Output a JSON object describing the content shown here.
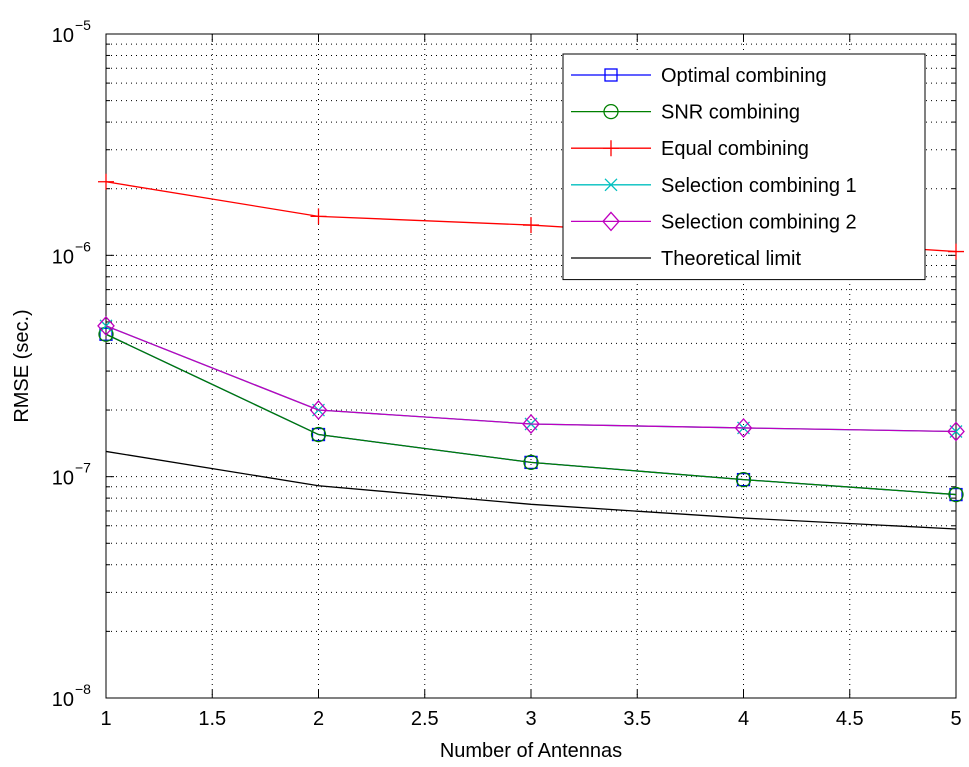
{
  "chart_data": {
    "type": "line",
    "title": "",
    "xlabel": "Number of Antennas",
    "ylabel": "RMSE (sec.)",
    "xlim": [
      1,
      5
    ],
    "ylim": [
      1e-08,
      1e-05
    ],
    "yscale": "log",
    "grid": true,
    "legend_position": "top-right",
    "x": [
      1,
      2,
      3,
      4,
      5
    ],
    "x_ticks": [
      "1",
      "1.5",
      "2",
      "2.5",
      "3",
      "3.5",
      "4",
      "4.5",
      "5"
    ],
    "y_ticks": [
      {
        "base": "10",
        "exp": "−8"
      },
      {
        "base": "10",
        "exp": "−7"
      },
      {
        "base": "10",
        "exp": "−6"
      },
      {
        "base": "10",
        "exp": "−5"
      }
    ],
    "series": [
      {
        "name": "Optimal combining",
        "color": "#0000ff",
        "marker": "square",
        "values": [
          4.4e-07,
          1.55e-07,
          1.16e-07,
          9.7e-08,
          8.3e-08
        ]
      },
      {
        "name": "SNR combining",
        "color": "#008000",
        "marker": "circle",
        "values": [
          4.4e-07,
          1.55e-07,
          1.16e-07,
          9.7e-08,
          8.3e-08
        ]
      },
      {
        "name": "Equal combining",
        "color": "#ff0000",
        "marker": "plus",
        "values": [
          2.15e-06,
          1.5e-06,
          1.37e-06,
          1.2e-06,
          1.04e-06
        ]
      },
      {
        "name": "Selection combining 1",
        "color": "#00bfbf",
        "marker": "x",
        "values": [
          4.8e-07,
          2e-07,
          1.73e-07,
          1.66e-07,
          1.6e-07
        ]
      },
      {
        "name": "Selection combining 2",
        "color": "#bf00bf",
        "marker": "diamond",
        "values": [
          4.8e-07,
          2e-07,
          1.73e-07,
          1.66e-07,
          1.6e-07
        ]
      },
      {
        "name": "Theoretical limit",
        "color": "#000000",
        "marker": "none",
        "values": [
          1.3e-07,
          9.1e-08,
          7.5e-08,
          6.5e-08,
          5.8e-08
        ]
      }
    ]
  }
}
